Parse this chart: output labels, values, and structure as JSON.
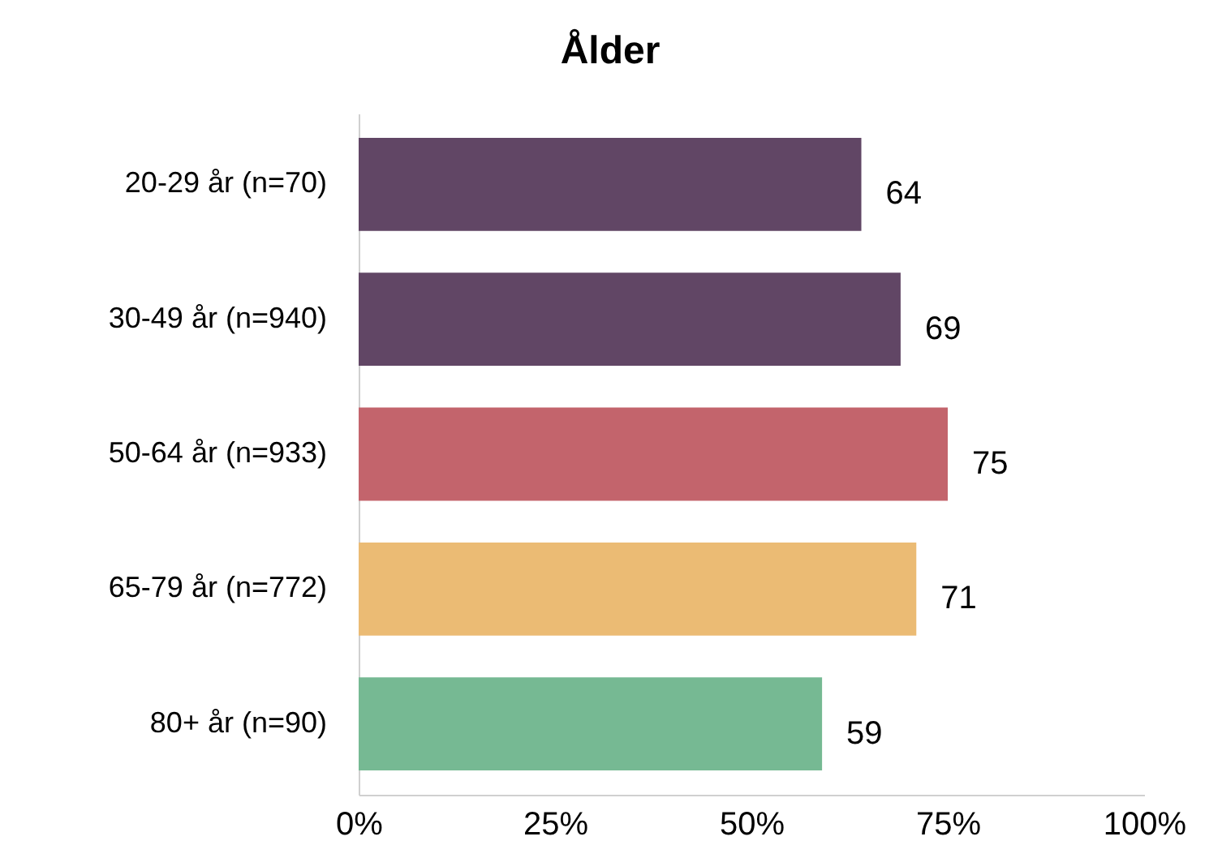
{
  "chart_data": {
    "type": "bar",
    "title": "Ålder",
    "orientation": "horizontal",
    "categories": [
      "20-29 år (n=70)",
      "30-49 år (n=940)",
      "50-64 år (n=933)",
      "65-79 år (n=772)",
      "80+ år (n=90)"
    ],
    "values": [
      64,
      69,
      75,
      71,
      59
    ],
    "colors": [
      "#614665",
      "#614665",
      "#c3646c",
      "#ebbb74",
      "#76b993"
    ],
    "xlim": [
      0,
      100
    ],
    "xticks": [
      {
        "value": 0,
        "label": "0%"
      },
      {
        "value": 25,
        "label": "25%"
      },
      {
        "value": 50,
        "label": "50%"
      },
      {
        "value": 75,
        "label": "75%"
      },
      {
        "value": 100,
        "label": "100%"
      }
    ],
    "data_labels": true
  }
}
